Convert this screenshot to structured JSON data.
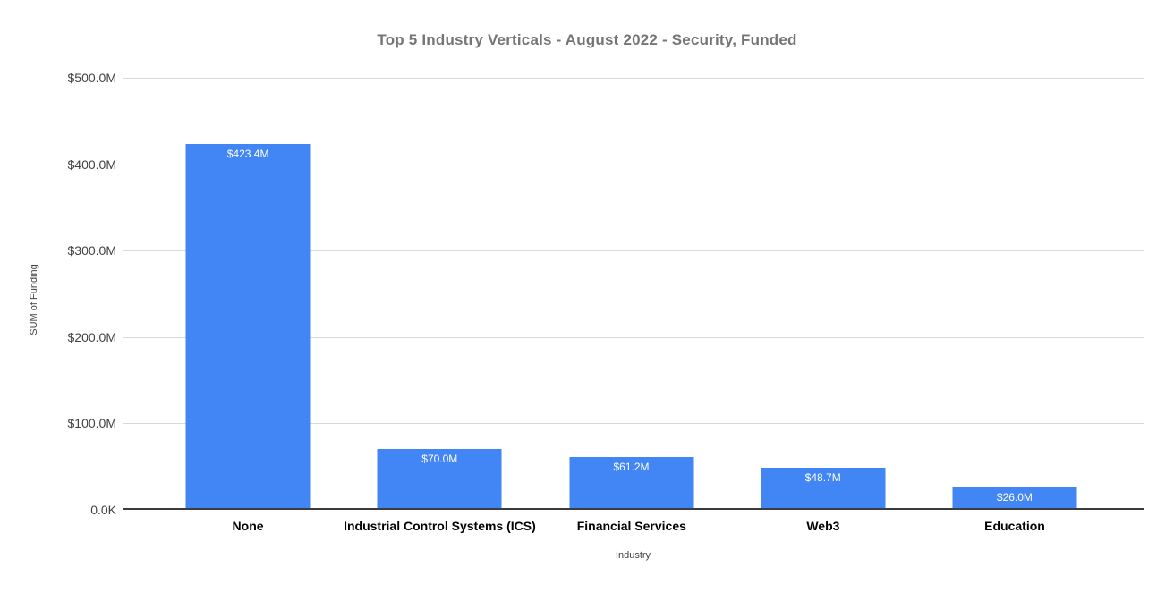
{
  "chart_data": {
    "type": "bar",
    "title": "Top 5 Industry Verticals - August 2022 - Security, Funded",
    "xlabel": "Industry",
    "ylabel": "SUM of Funding",
    "categories": [
      "None",
      "Industrial Control Systems (ICS)",
      "Financial Services",
      "Web3",
      "Education"
    ],
    "values": [
      423.4,
      70.0,
      61.2,
      48.7,
      26.0
    ],
    "bar_value_labels": [
      "$423.4M",
      "$70.0M",
      "$61.2M",
      "$48.7M",
      "$26.0M"
    ],
    "ytick_labels": [
      "$500.0M",
      "$400.0M",
      "$300.0M",
      "$200.0M",
      "$100.0M",
      "0.0K"
    ],
    "ytick_values": [
      500,
      400,
      300,
      200,
      100,
      0
    ],
    "ylim": [
      0,
      500
    ],
    "grid": true,
    "legend_position": "none",
    "bar_color": "#4285f4",
    "title_color": "#757575",
    "axis_text_color": "#424242",
    "category_text_color": "#000000",
    "gridline_color": "#d9d9d9",
    "baseline_color": "#3c3c3c",
    "background_color": "#ffffff"
  }
}
